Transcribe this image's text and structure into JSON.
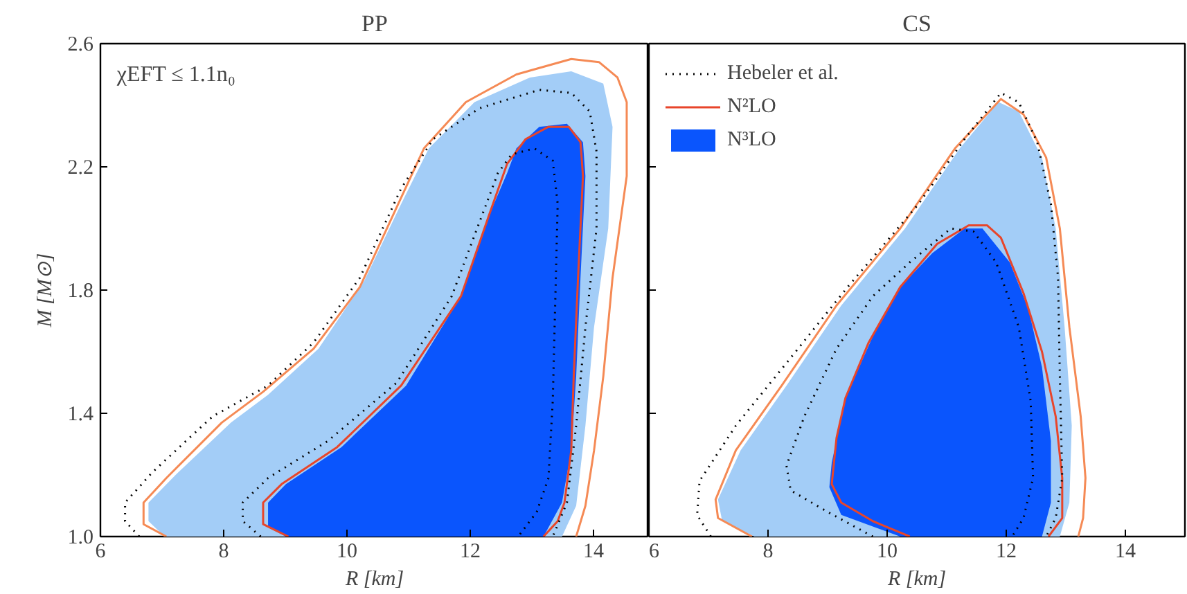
{
  "chart_data": [
    {
      "type": "line",
      "title": "PP",
      "xlabel": "R [km]",
      "ylabel": "M [M⊙]",
      "xlim": [
        6,
        14.9
      ],
      "ylim": [
        1.0,
        2.6
      ],
      "xticks": [
        6,
        8,
        10,
        12,
        14
      ],
      "yticks": [
        {
          "value": 1.0,
          "label": "1.0"
        },
        {
          "value": 1.4,
          "label": "1.4"
        },
        {
          "value": 1.8,
          "label": "1.8"
        },
        {
          "value": 2.2,
          "label": "2.2"
        },
        {
          "value": 2.6,
          "label": "2.6"
        }
      ],
      "legend": false,
      "grid": false,
      "annotations": [
        "χEFT ≤ 1.1n₀"
      ],
      "series": [
        {
          "type": "area",
          "color": "#a3cdf7",
          "x": [
            7.04,
            6.78,
            6.78,
            7.22,
            8.12,
            8.72,
            9.54,
            10.28,
            10.88,
            11.33,
            12.07,
            12.97,
            13.64,
            14.16,
            14.31,
            14.24,
            14.01,
            13.87,
            13.72,
            13.49
          ],
          "values": [
            1.0,
            1.05,
            1.11,
            1.2,
            1.37,
            1.46,
            1.61,
            1.83,
            2.08,
            2.26,
            2.41,
            2.49,
            2.51,
            2.47,
            2.33,
            2.0,
            1.68,
            1.36,
            1.1,
            1.0
          ]
        },
        {
          "type": "area",
          "color": "#0a55fd",
          "x": [
            9.01,
            8.72,
            8.72,
            9.01,
            9.91,
            10.96,
            11.85,
            12.3,
            12.6,
            12.75,
            13.12,
            13.57,
            13.83,
            13.87,
            13.79,
            13.72,
            13.64,
            13.49,
            13.19
          ],
          "values": [
            1.0,
            1.03,
            1.11,
            1.17,
            1.29,
            1.49,
            1.78,
            2.04,
            2.18,
            2.26,
            2.33,
            2.34,
            2.28,
            2.17,
            1.84,
            1.52,
            1.28,
            1.11,
            1.0
          ]
        },
        {
          "color": "#f58a55",
          "x": [
            7.07,
            6.7,
            6.7,
            7.07,
            7.97,
            8.64,
            9.46,
            10.21,
            10.81,
            11.25,
            11.93,
            12.75,
            13.64,
            14.09,
            14.39,
            14.54,
            14.54,
            14.31,
            14.16,
            14.01,
            13.87,
            13.72
          ],
          "values": [
            1.0,
            1.04,
            1.11,
            1.19,
            1.37,
            1.47,
            1.61,
            1.81,
            2.07,
            2.26,
            2.41,
            2.5,
            2.55,
            2.54,
            2.49,
            2.41,
            2.17,
            1.84,
            1.52,
            1.28,
            1.1,
            1.0
          ]
        },
        {
          "color": "#e8452a",
          "x": [
            9.05,
            8.64,
            8.64,
            8.94,
            9.84,
            10.88,
            11.85,
            12.3,
            12.6,
            12.9,
            13.27,
            13.6,
            13.79,
            13.83,
            13.75,
            13.68,
            13.64,
            13.53,
            13.42,
            13.19
          ],
          "values": [
            1.0,
            1.04,
            1.11,
            1.17,
            1.29,
            1.49,
            1.78,
            2.04,
            2.21,
            2.29,
            2.33,
            2.33,
            2.28,
            2.17,
            1.84,
            1.52,
            1.28,
            1.11,
            1.05,
            1.0
          ]
        },
        {
          "color": "#000000",
          "line_style": "dotted",
          "x": [
            6.63,
            6.4,
            6.4,
            6.85,
            7.82,
            8.72,
            9.46,
            10.21,
            10.88,
            11.4,
            12.15,
            13.12,
            13.64,
            13.94,
            14.05,
            14.05,
            13.87,
            13.72,
            13.57,
            13.34
          ],
          "values": [
            1.0,
            1.05,
            1.11,
            1.21,
            1.39,
            1.49,
            1.63,
            1.84,
            2.13,
            2.29,
            2.39,
            2.45,
            2.44,
            2.38,
            2.25,
            2.0,
            1.68,
            1.36,
            1.11,
            1.0
          ]
        },
        {
          "color": "#000000",
          "line_style": "dotted",
          "x": [
            8.6,
            8.31,
            8.31,
            8.72,
            9.69,
            10.81,
            11.7,
            12.15,
            12.45,
            12.67,
            13.04,
            13.34,
            13.42,
            13.38,
            13.34,
            13.27,
            13.08,
            12.78
          ],
          "values": [
            1.0,
            1.05,
            1.11,
            1.19,
            1.31,
            1.5,
            1.78,
            2.02,
            2.18,
            2.24,
            2.26,
            2.22,
            2.08,
            1.76,
            1.44,
            1.19,
            1.08,
            1.0
          ]
        }
      ]
    },
    {
      "type": "line",
      "title": "CS",
      "xlabel": "R [km]",
      "xlim": [
        6,
        15
      ],
      "ylim": [
        1.0,
        2.6
      ],
      "xticks": [
        6,
        8,
        10,
        12,
        14
      ],
      "yticks": [
        1.0,
        1.4,
        1.8,
        2.2,
        2.6
      ],
      "tick_labels": "x",
      "legend": "top left",
      "grid": false,
      "series": [
        {
          "type": "area",
          "color": "#a3cdf7",
          "x": [
            7.77,
            7.23,
            7.16,
            7.54,
            8.31,
            9.23,
            10.3,
            11.22,
            11.87,
            12.21,
            12.6,
            12.83,
            12.98,
            13.1,
            13.06,
            12.9
          ],
          "values": [
            1.0,
            1.05,
            1.12,
            1.28,
            1.49,
            1.75,
            2.0,
            2.26,
            2.41,
            2.38,
            2.23,
            2.0,
            1.68,
            1.36,
            1.11,
            1.0
          ]
        },
        {
          "type": "area",
          "name": "N³LO",
          "color": "#0a55fd",
          "x": [
            10.22,
            9.23,
            9.03,
            9.07,
            9.3,
            9.76,
            10.22,
            10.76,
            11.3,
            11.6,
            12.06,
            12.37,
            12.6,
            12.75,
            12.75,
            12.6
          ],
          "values": [
            1.0,
            1.07,
            1.16,
            1.24,
            1.45,
            1.65,
            1.81,
            1.92,
            2.0,
            2.0,
            1.89,
            1.74,
            1.55,
            1.31,
            1.11,
            1.0
          ]
        },
        {
          "color": "#f58a55",
          "x": [
            7.73,
            7.16,
            7.12,
            7.46,
            8.23,
            9.15,
            10.22,
            11.14,
            11.91,
            12.29,
            12.67,
            12.9,
            13.06,
            13.25,
            13.33,
            13.29,
            13.21
          ],
          "values": [
            1.0,
            1.06,
            1.12,
            1.28,
            1.49,
            1.75,
            2.0,
            2.26,
            2.42,
            2.37,
            2.23,
            2.0,
            1.68,
            1.39,
            1.19,
            1.06,
            1.0
          ]
        },
        {
          "name": "N²LO",
          "color": "#e8452a",
          "x": [
            10.38,
            9.76,
            9.23,
            9.07,
            9.15,
            9.3,
            9.69,
            10.22,
            10.84,
            11.37,
            11.68,
            11.91,
            12.29,
            12.6,
            12.83,
            12.94,
            12.94,
            12.71
          ],
          "values": [
            1.0,
            1.05,
            1.11,
            1.17,
            1.32,
            1.45,
            1.63,
            1.81,
            1.95,
            2.01,
            2.01,
            1.97,
            1.79,
            1.6,
            1.39,
            1.19,
            1.06,
            1.0
          ]
        },
        {
          "name": "Hebeler et al.",
          "color": "#000000",
          "line_style": "dotted",
          "x": [
            7.04,
            6.81,
            6.85,
            7.46,
            8.38,
            9.38,
            10.53,
            11.3,
            11.91,
            12.21,
            12.52,
            12.75,
            12.87,
            12.9,
            12.94,
            12.83,
            12.67
          ],
          "values": [
            1.0,
            1.07,
            1.18,
            1.36,
            1.58,
            1.82,
            2.08,
            2.29,
            2.44,
            2.41,
            2.28,
            2.08,
            1.84,
            1.52,
            1.19,
            1.06,
            1.0
          ]
        },
        {
          "color": "#000000",
          "line_style": "dotted",
          "x": [
            9.76,
            9.0,
            8.38,
            8.31,
            8.61,
            9.15,
            9.76,
            10.38,
            11.07,
            11.45,
            11.83,
            12.21,
            12.41,
            12.45,
            12.29,
            12.1
          ],
          "values": [
            1.0,
            1.08,
            1.15,
            1.23,
            1.39,
            1.61,
            1.78,
            1.89,
            2.0,
            1.99,
            1.89,
            1.68,
            1.44,
            1.19,
            1.06,
            1.0
          ]
        }
      ]
    }
  ]
}
